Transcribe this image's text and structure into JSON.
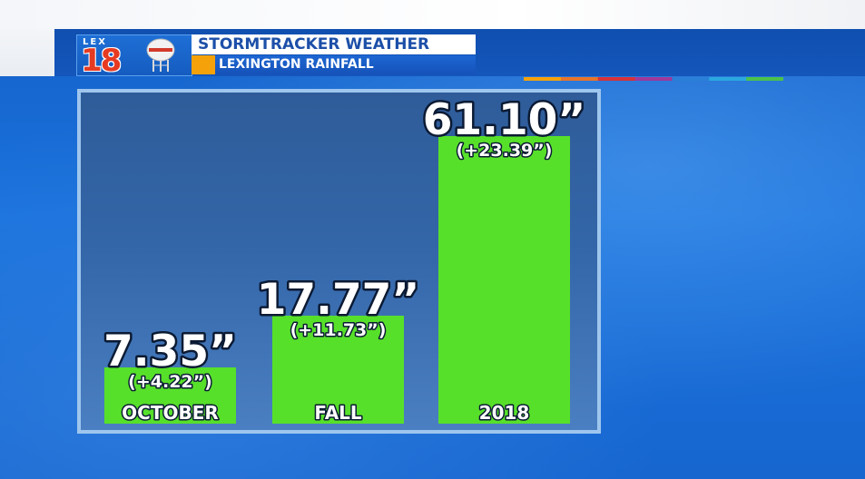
{
  "header": {
    "logo_lex": "LEX",
    "logo_num": "18",
    "title": "STORMTRACKER WEATHER",
    "subtitle": "LEXINGTON RAINFALL"
  },
  "colors": {
    "bar": "#57e02a",
    "panel_border": "#9fc6ee",
    "accent": "#f5a20a",
    "stripe": [
      "#f5a20a",
      "#e8742a",
      "#d8323a",
      "#a03a9a",
      "#2a7fd8",
      "#2aa8e0",
      "#4cc24a"
    ]
  },
  "chart_data": {
    "type": "bar",
    "title": "LEXINGTON RAINFALL",
    "categories": [
      "OCTOBER",
      "FALL",
      "2018"
    ],
    "values": [
      7.35,
      17.77,
      61.1
    ],
    "value_labels": [
      "7.35”",
      "17.77”",
      "61.10”"
    ],
    "departures": [
      4.22,
      11.73,
      23.39
    ],
    "departure_labels": [
      "(+4.22”)",
      "(+11.73”)",
      "(+23.39”)"
    ],
    "unit": "inches",
    "grid": false,
    "legend": "none"
  }
}
